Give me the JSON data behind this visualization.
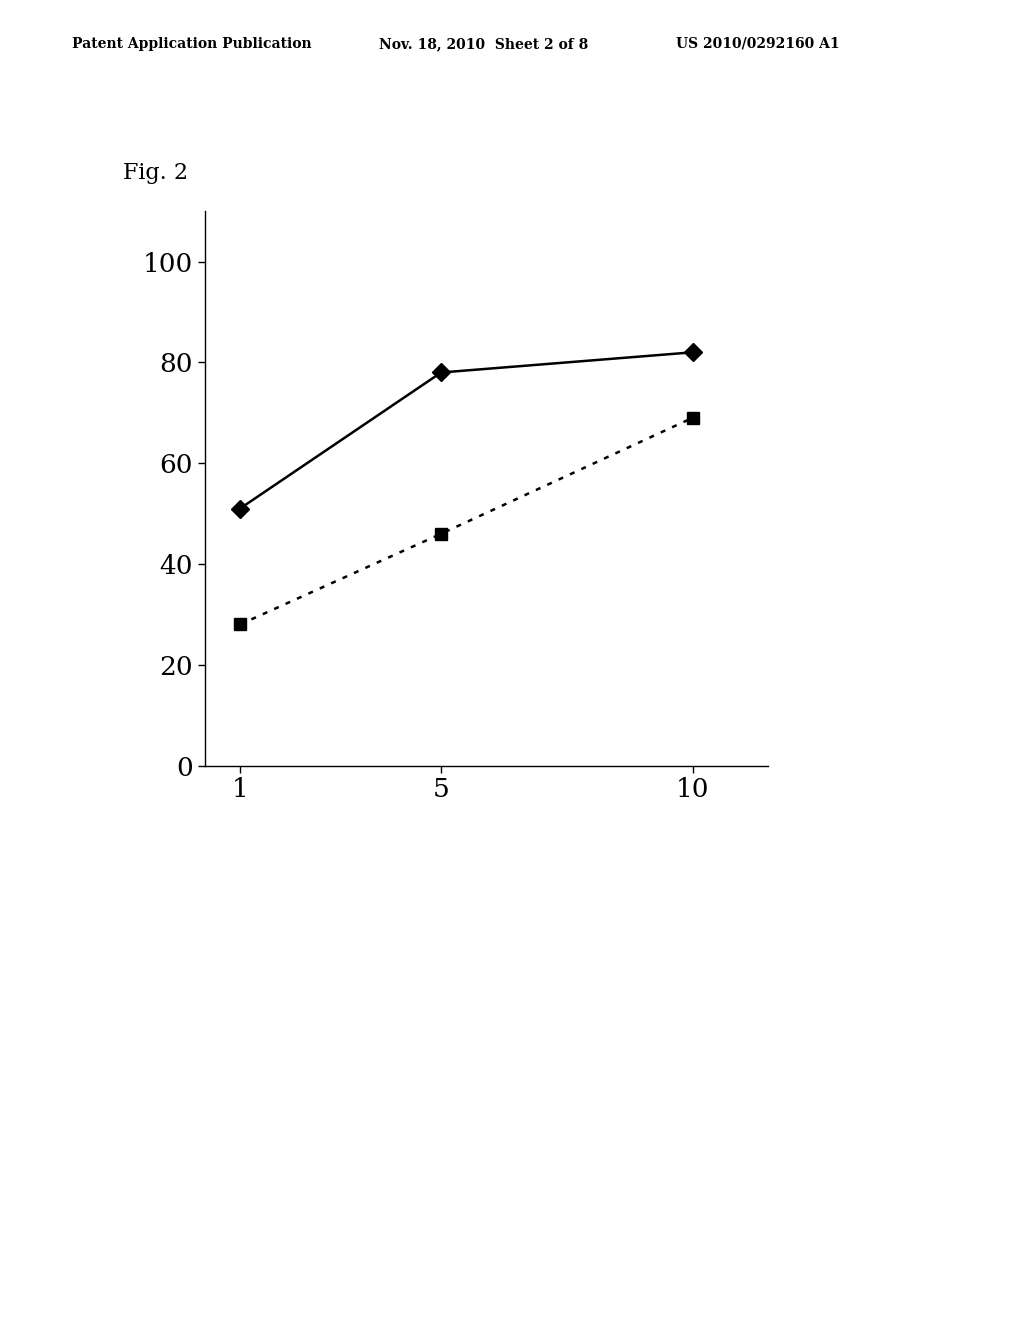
{
  "fig_label": "Fig. 2",
  "patent_line1": "Patent Application Publication",
  "patent_line2": "Nov. 18, 2010  Sheet 2 of 8",
  "patent_line3": "US 2010/0292160 A1",
  "series1": {
    "x": [
      1,
      5,
      10
    ],
    "y": [
      51,
      78,
      82
    ],
    "linestyle": "solid",
    "marker": "D",
    "color": "#000000",
    "linewidth": 1.8,
    "markersize": 9
  },
  "series2": {
    "x": [
      1,
      5,
      10
    ],
    "y": [
      28,
      46,
      69
    ],
    "marker": "s",
    "color": "#000000",
    "linewidth": 1.8,
    "markersize": 9
  },
  "xlim": [
    0.3,
    11.5
  ],
  "ylim": [
    0,
    110
  ],
  "xticks": [
    1,
    5,
    10
  ],
  "yticks": [
    0,
    20,
    40,
    60,
    80,
    100
  ],
  "background_color": "#ffffff",
  "axes_color": "#000000",
  "tick_fontsize": 19,
  "fig_label_fontsize": 16,
  "header_fontsize": 10
}
